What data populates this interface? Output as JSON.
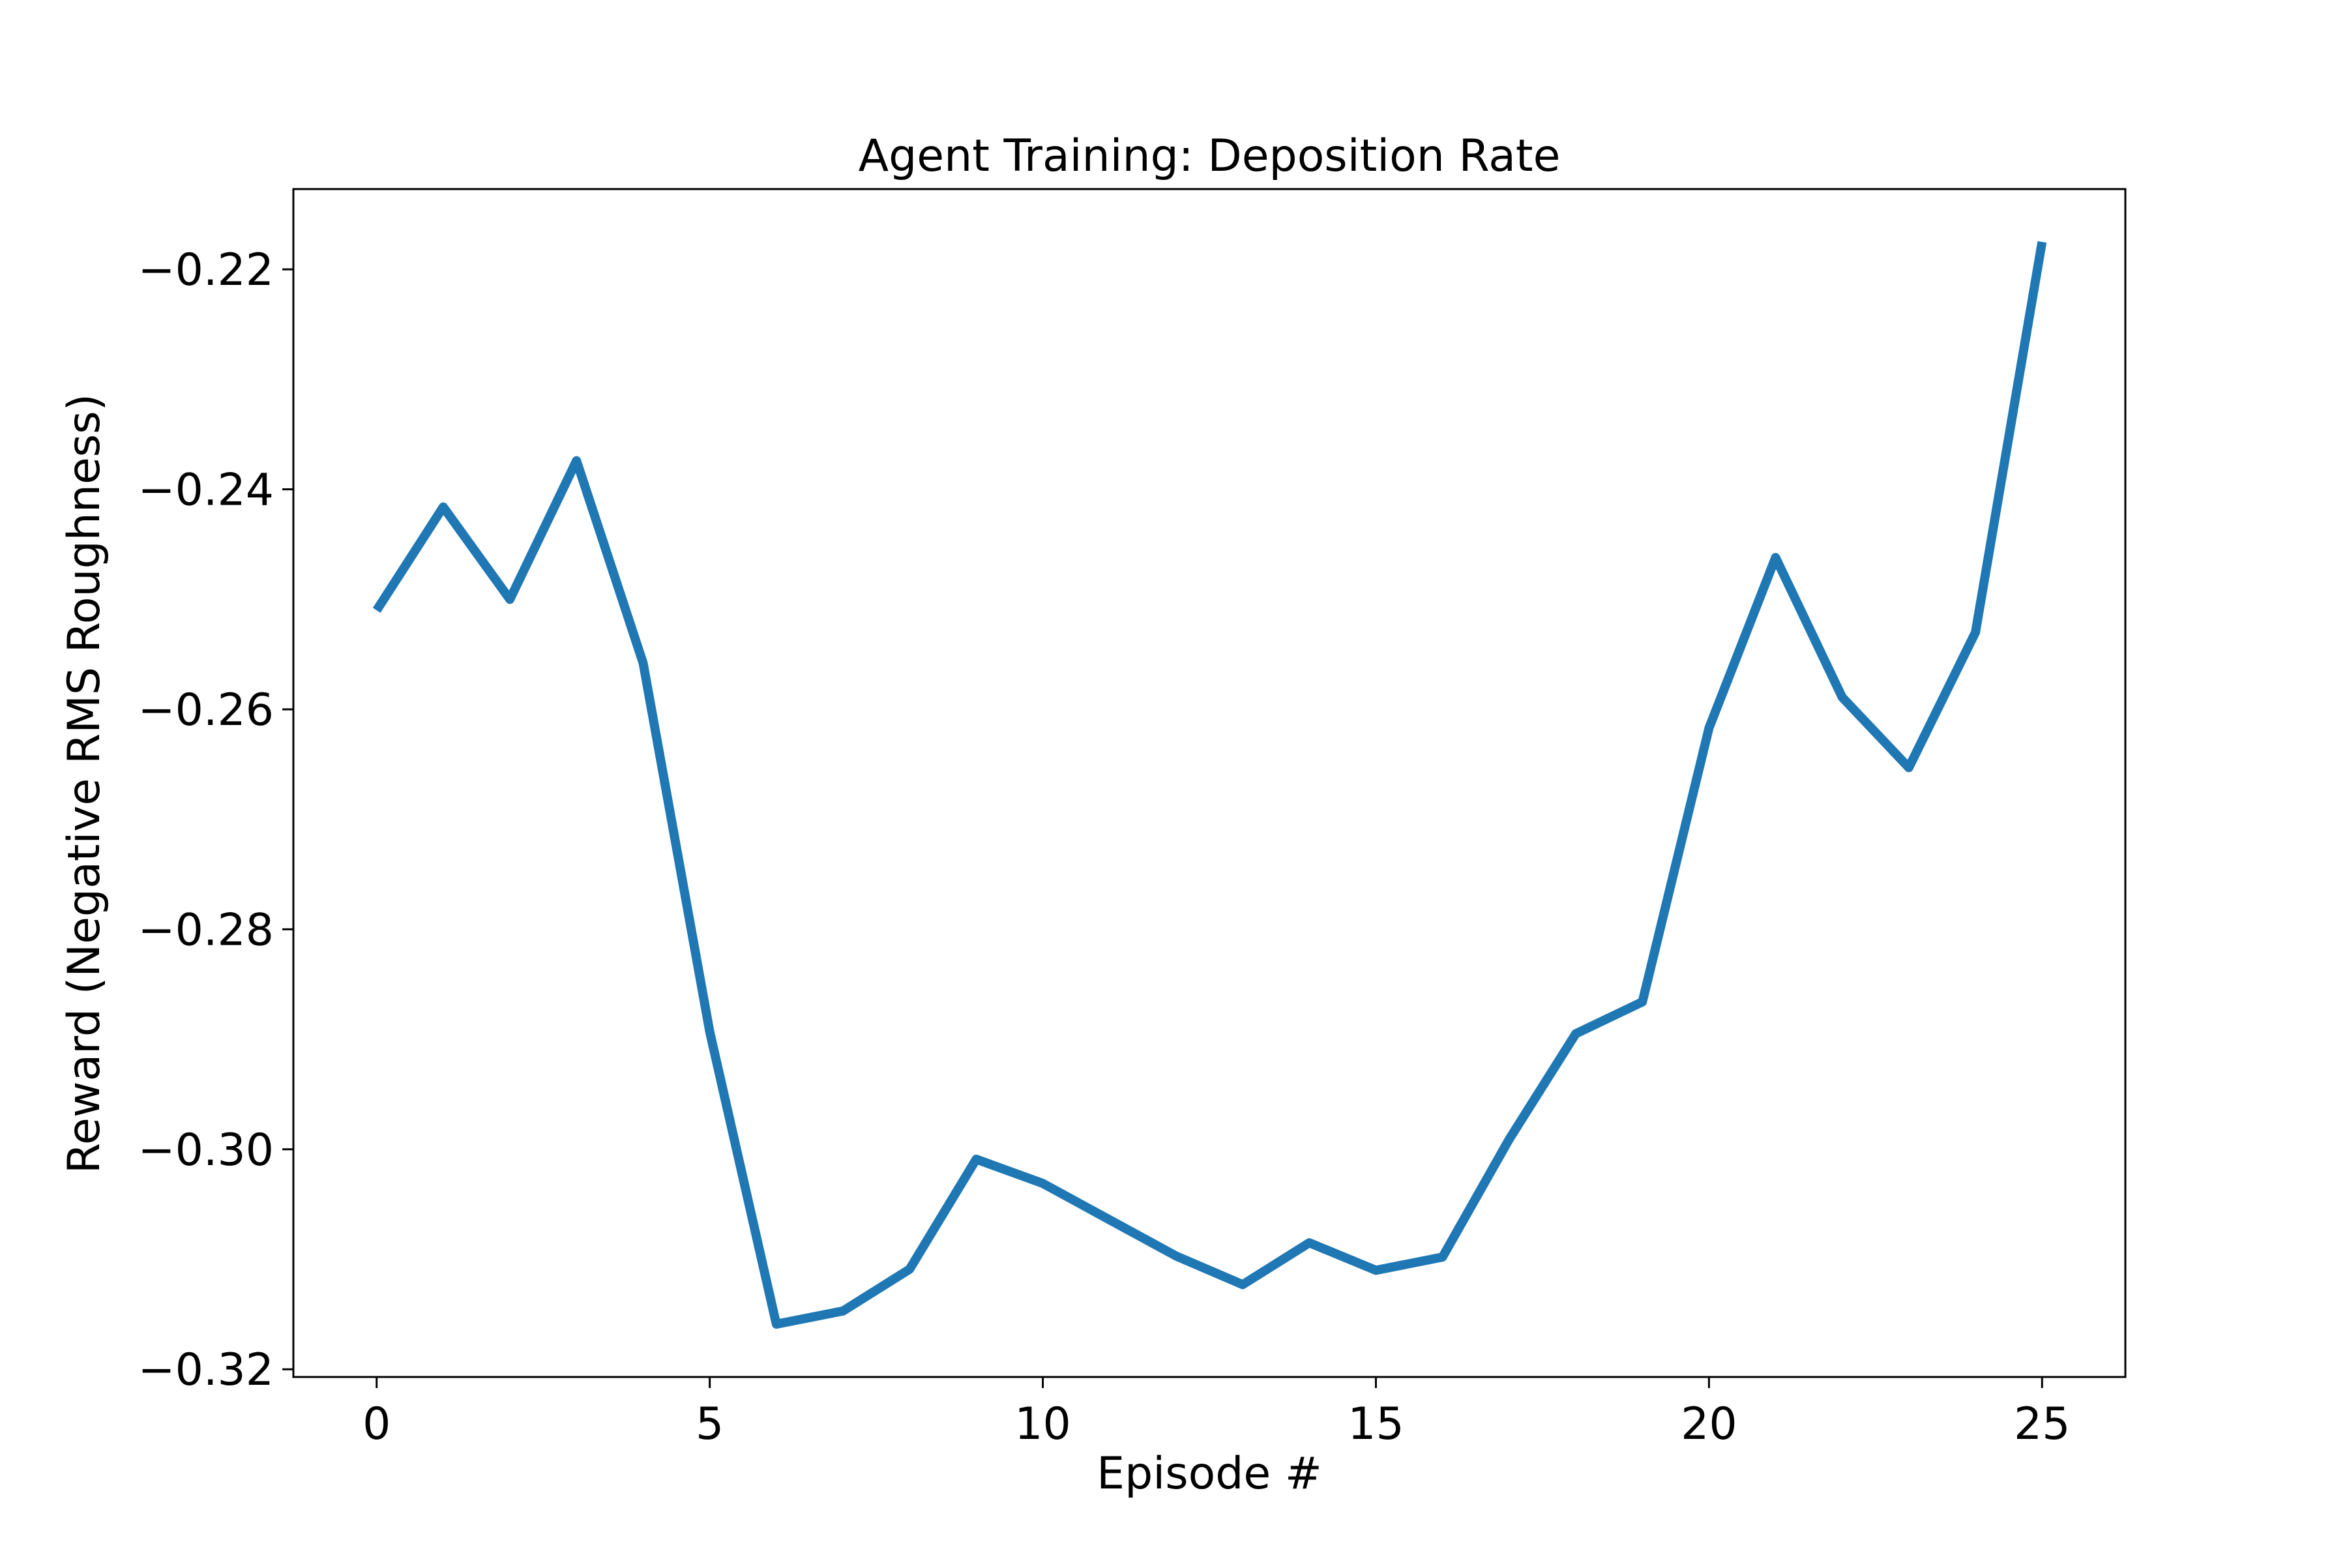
{
  "chart_data": {
    "type": "line",
    "title": "Agent Training: Deposition Rate",
    "xlabel": "Episode #",
    "ylabel": "Reward (Negative RMS Roughness)",
    "xlim": [
      -1.25,
      26.25
    ],
    "ylim": [
      -0.3207,
      -0.2127
    ],
    "xticks": [
      0,
      5,
      10,
      15,
      20,
      25
    ],
    "xtick_labels": [
      "0",
      "5",
      "10",
      "15",
      "20",
      "25"
    ],
    "yticks": [
      -0.32,
      -0.3,
      -0.28,
      -0.26,
      -0.24,
      -0.22
    ],
    "ytick_labels": [
      "−0.32",
      "−0.30",
      "−0.28",
      "−0.26",
      "−0.24",
      "−0.22"
    ],
    "grid": false,
    "series": [
      {
        "color": "#1f77b4",
        "x": [
          0,
          1,
          2,
          3,
          4,
          5,
          6,
          7,
          8,
          9,
          10,
          11,
          12,
          13,
          14,
          15,
          16,
          17,
          18,
          19,
          20,
          21,
          22,
          23,
          24,
          25
        ],
        "y": [
          -0.251,
          -0.2416,
          -0.25,
          -0.2374,
          -0.2558,
          -0.2893,
          -0.3159,
          -0.3147,
          -0.3109,
          -0.3009,
          -0.3031,
          -0.3064,
          -0.3097,
          -0.3123,
          -0.3085,
          -0.311,
          -0.3098,
          -0.2991,
          -0.2895,
          -0.2866,
          -0.2617,
          -0.2462,
          -0.2589,
          -0.2653,
          -0.253,
          -0.2175
        ]
      }
    ]
  }
}
